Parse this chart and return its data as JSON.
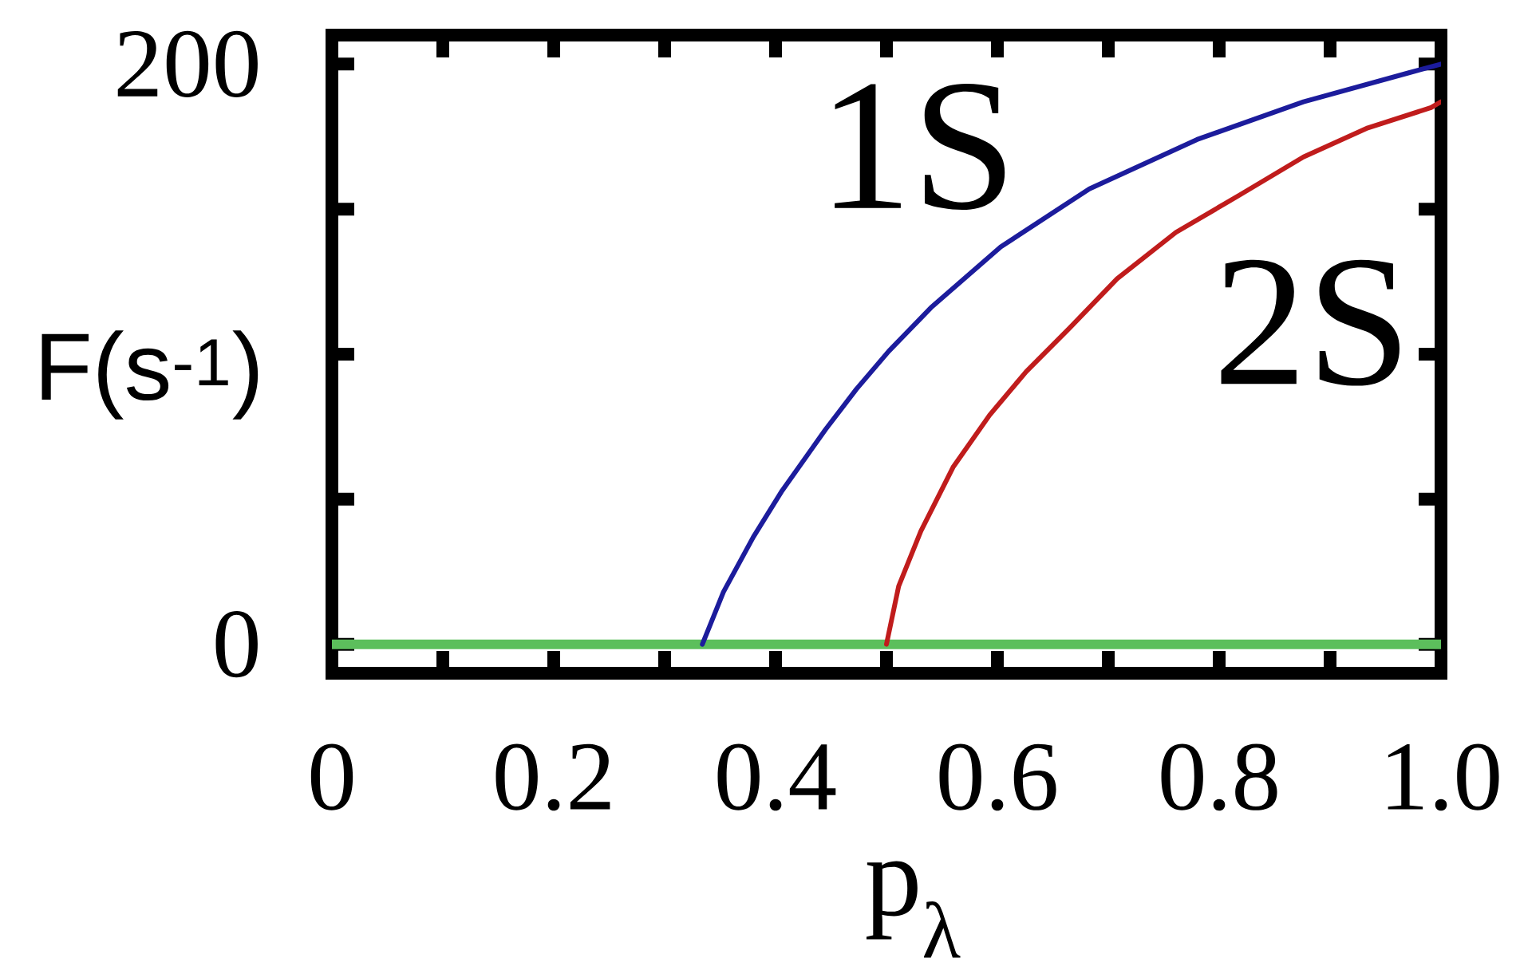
{
  "chart_data": {
    "type": "line",
    "xlabel": "p$_{λ}$",
    "ylabel": "F(s$^{-1}$)",
    "xlim": [
      0,
      1
    ],
    "ylim": [
      -10,
      210
    ],
    "xticks": [
      0,
      {
        "value": 0.1,
        "label": null
      },
      0.2,
      {
        "value": 0.3,
        "label": null
      },
      0.4,
      {
        "value": 0.5,
        "label": null
      },
      0.6,
      {
        "value": 0.7,
        "label": null
      },
      0.8,
      {
        "value": 0.9,
        "label": null
      },
      {
        "value": 1,
        "label": "1.0"
      }
    ],
    "yticks": [
      0,
      {
        "value": 50,
        "label": null
      },
      {
        "value": 100,
        "label": null
      },
      {
        "value": 150,
        "label": null
      },
      200
    ],
    "marker": "none",
    "line_style": "solid",
    "series": [
      {
        "color": "#5cbf5c",
        "x": [
          0,
          1
        ],
        "values": [
          0,
          0
        ]
      },
      {
        "name": "1S",
        "color": "#1c1c9c",
        "x": [
          0.334,
          0.353,
          0.38,
          0.406,
          0.445,
          0.473,
          0.502,
          0.54,
          0.603,
          0.683,
          0.78,
          0.876,
          0.971,
          1.0
        ],
        "values": [
          0,
          18,
          37,
          53,
          74,
          88,
          101,
          116,
          137,
          157,
          174,
          187,
          197,
          200
        ]
      },
      {
        "name": "2S",
        "color": "#c01c1c",
        "x": [
          0.5,
          0.511,
          0.531,
          0.56,
          0.593,
          0.626,
          0.665,
          0.708,
          0.761,
          0.819,
          0.876,
          0.934,
          0.991,
          1.0
        ],
        "values": [
          0,
          20,
          39,
          61,
          79,
          94,
          109,
          126,
          142,
          155,
          168,
          178,
          185,
          187
        ]
      }
    ]
  }
}
